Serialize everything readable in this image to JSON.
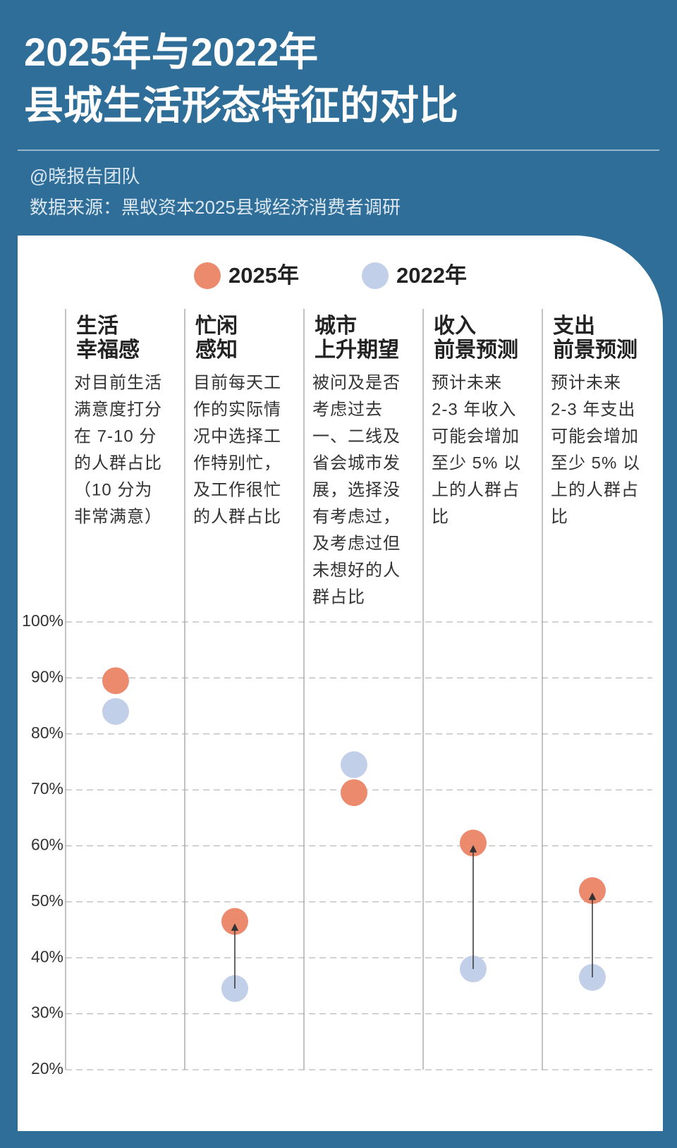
{
  "chart_data": {
    "type": "dot",
    "title": [
      "2025年与2022年",
      "县城生活形态特征的对比"
    ],
    "subtitle": [
      "@晓报告团队",
      "数据来源：黑蚁资本2025县域经济消费者调研"
    ],
    "categories": [
      [
        "生活",
        "幸福感"
      ],
      [
        "忙闲",
        "感知"
      ],
      [
        "城市",
        "上升期望"
      ],
      [
        "收入",
        "前景预测"
      ],
      [
        "支出",
        "前景预测"
      ]
    ],
    "descriptions": [
      [
        "对目前生活",
        "满意度打分",
        "在 7-10 分",
        "的人群占比",
        "（10 分为",
        "非常满意）"
      ],
      [
        "目前每天工",
        "作的实际情",
        "况中选择工",
        "作特别忙，",
        "及工作很忙",
        "的人群占比"
      ],
      [
        "被问及是否",
        "考虑过去",
        "一、二线及",
        "省会城市发",
        "展，选择没",
        "有考虑过，",
        "及考虑过但",
        "未想好的人",
        "群占比"
      ],
      [
        "预计未来",
        "2-3 年收入",
        "可能会增加",
        "至少 5% 以",
        "上的人群占",
        "比"
      ],
      [
        "预计未来",
        "2-3 年支出",
        "可能会增加",
        "至少 5% 以",
        "上的人群占",
        "比"
      ]
    ],
    "series": [
      {
        "name": "2025年",
        "color": "#ec8a6e",
        "values": [
          89.5,
          46.5,
          69.5,
          60.5,
          52
        ]
      },
      {
        "name": "2022年",
        "color": "#c2cfe9",
        "values": [
          84,
          34.5,
          74.5,
          38,
          36.5
        ]
      }
    ],
    "ylim": [
      20,
      100
    ],
    "yticks": [
      {
        "value": 20,
        "label": "20%"
      },
      {
        "value": 30,
        "label": "30%"
      },
      {
        "value": 40,
        "label": "40%"
      },
      {
        "value": 50,
        "label": "50%"
      },
      {
        "value": 60,
        "label": "60%"
      },
      {
        "value": 70,
        "label": "70%"
      },
      {
        "value": 80,
        "label": "80%"
      },
      {
        "value": 90,
        "label": "90%"
      },
      {
        "value": 100,
        "label": "100%"
      }
    ],
    "grid": true
  }
}
